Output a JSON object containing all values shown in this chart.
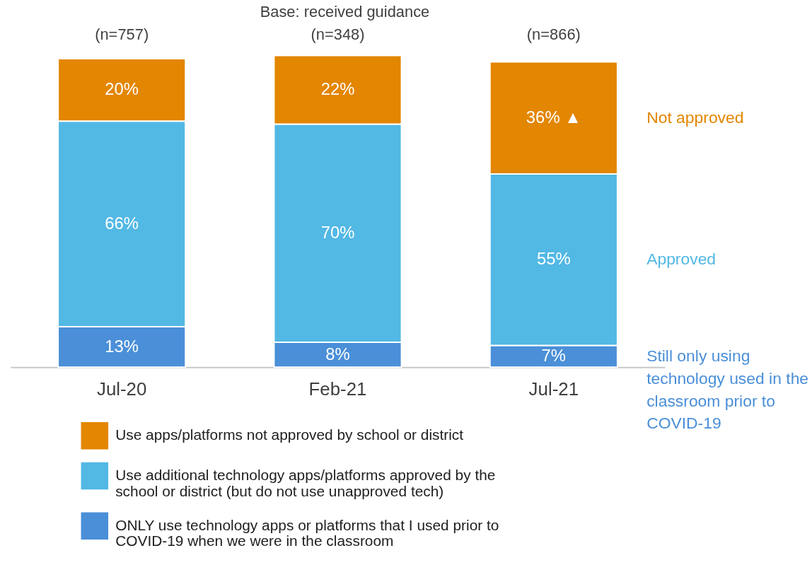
{
  "chart_data": {
    "type": "bar",
    "stacked": true,
    "legend": "bottom",
    "grid": false,
    "categories": [
      "Jul-20",
      "Feb-21",
      "Jul-21"
    ],
    "series": [
      {
        "name": "ONLY use technology apps or platforms that I used prior to COVID-19 when we were in the classroom",
        "color": "#4a8fd8",
        "values": [
          13,
          8,
          7
        ],
        "value_labels": [
          "13%",
          "8%",
          "7%"
        ]
      },
      {
        "name": "Use additional technology apps/platforms approved by the school or district (but do not use unapproved tech)",
        "color": "#52b8e4",
        "values": [
          66,
          70,
          55
        ],
        "value_labels": [
          "66%",
          "70%",
          "55%"
        ]
      },
      {
        "name": "Use apps/platforms not approved by school or district",
        "color": "#e38600",
        "values": [
          20,
          22,
          36
        ],
        "value_labels": [
          "20%",
          "22%",
          "36% ▲"
        ]
      }
    ],
    "annotations": [
      "Base: received guidance",
      "(n=757)",
      "(n=348)",
      "(n=866)",
      "Not approved",
      "Approved",
      "Still only using technology used in the classroom prior to COVID-19"
    ]
  }
}
